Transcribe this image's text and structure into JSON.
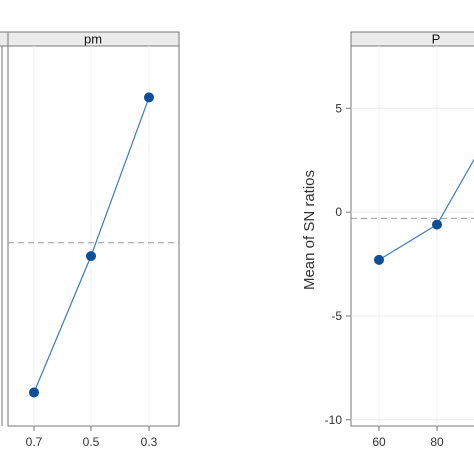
{
  "chart_data": [
    {
      "type": "line",
      "panel_label": "pm",
      "categories": [
        "0.7",
        "0.5",
        "0.3"
      ],
      "values": [
        -5.5,
        0.6,
        7.7
      ],
      "mean_ref": 1.2,
      "ylim": [
        -7,
        10
      ],
      "y_ticks": [],
      "xlabel": "",
      "ylabel": "",
      "grid": true,
      "line_color": "#3a7bbf",
      "marker_color": "#0b4f99"
    },
    {
      "type": "line",
      "panel_label": "P",
      "categories": [
        "60",
        "80"
      ],
      "values": [
        -2.3,
        -0.6
      ],
      "extends_beyond_frame": {
        "next_value": 4.3
      },
      "mean_ref": -0.3,
      "ylim": [
        -10.3,
        8
      ],
      "y_ticks": [
        "5",
        "0",
        "-5",
        "-10"
      ],
      "y_tick_values": [
        5,
        0,
        -5,
        -10
      ],
      "xlabel": "",
      "ylabel": "Mean of SN ratios",
      "grid": true,
      "line_color": "#3a7bbf",
      "marker_color": "#0b4f99"
    }
  ]
}
